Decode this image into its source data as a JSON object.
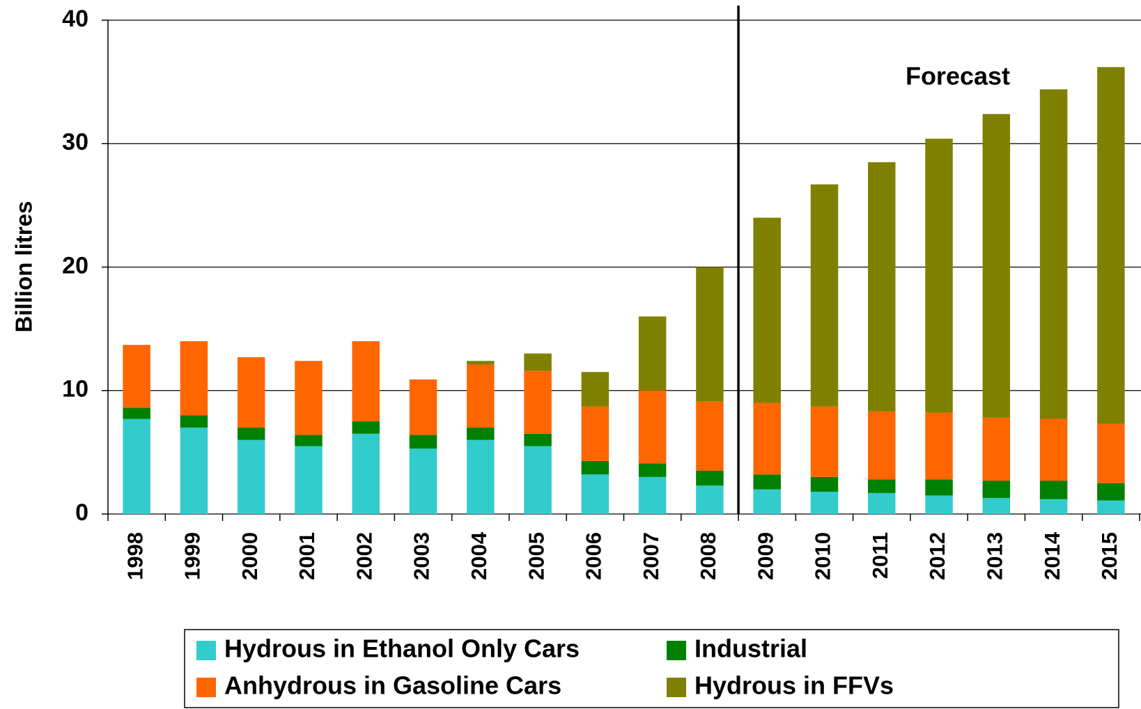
{
  "chart_data": {
    "type": "stacked-bar",
    "y_label": "Billion litres",
    "annotation": "Forecast",
    "categories": [
      "1998",
      "1999",
      "2000",
      "2001",
      "2002",
      "2003",
      "2004",
      "2005",
      "2006",
      "2007",
      "2008",
      "2009",
      "2010",
      "2011",
      "2012",
      "2013",
      "2014",
      "2015"
    ],
    "series": [
      {
        "name": "Hydrous in Ethanol Only Cars",
        "color": "#33CCCC",
        "values": [
          7.7,
          7.0,
          6.0,
          5.5,
          6.5,
          5.3,
          6.0,
          5.5,
          3.2,
          3.0,
          2.3,
          2.0,
          1.8,
          1.7,
          1.5,
          1.3,
          1.2,
          1.1
        ]
      },
      {
        "name": "Industrial",
        "color": "#008000",
        "values": [
          0.9,
          1.0,
          1.0,
          0.9,
          1.0,
          1.1,
          1.0,
          1.0,
          1.1,
          1.1,
          1.2,
          1.2,
          1.2,
          1.1,
          1.3,
          1.4,
          1.5,
          1.4
        ]
      },
      {
        "name": "Anhydrous in Gasoline Cars",
        "color": "#FF6600",
        "values": [
          5.1,
          6.0,
          5.7,
          6.0,
          6.5,
          4.5,
          5.1,
          5.1,
          4.4,
          5.9,
          5.6,
          5.8,
          5.7,
          5.5,
          5.4,
          5.1,
          5.0,
          4.8
        ]
      },
      {
        "name": "Hydrous in FFVs",
        "color": "#808000",
        "values": [
          0,
          0,
          0,
          0,
          0,
          0,
          0.3,
          1.4,
          2.8,
          6.0,
          10.9,
          15.0,
          18.0,
          20.2,
          22.2,
          24.6,
          26.7,
          28.9
        ]
      }
    ],
    "ylim": [
      0,
      40
    ],
    "yticks": [
      0,
      10,
      20,
      30,
      40
    ],
    "grid": true
  }
}
